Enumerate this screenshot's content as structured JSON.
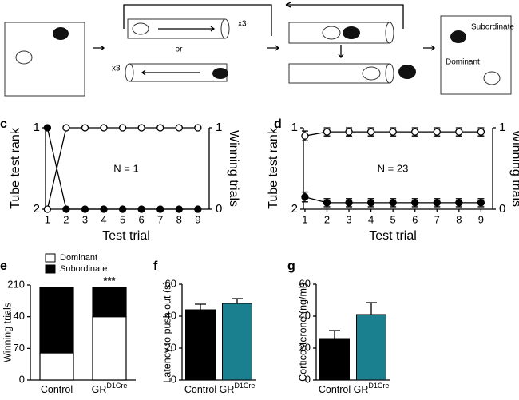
{
  "diagram": {
    "repeat_top": "x3",
    "or": "or",
    "repeat_bottom": "x3",
    "subordinate": "Subordinate",
    "dominant": "Dominant"
  },
  "chart_data": [
    {
      "type": "line",
      "panel": "c",
      "annotation": "N = 1",
      "xlabel": "Test trial",
      "ylabel": "Tube test rank",
      "y2label": "Winning trials",
      "x": [
        1,
        2,
        3,
        4,
        5,
        6,
        7,
        8,
        9
      ],
      "xlim": [
        0.9,
        9.6
      ],
      "xticks": [
        1,
        2,
        3,
        4,
        5,
        6,
        7,
        8,
        9
      ],
      "ylim": [
        2,
        1
      ],
      "yticks": [
        1,
        2
      ],
      "y2lim": [
        0,
        1
      ],
      "y2ticks": [
        0,
        1
      ],
      "series": [
        {
          "color": "#000000",
          "marker": "filled",
          "values": [
            1,
            2,
            2,
            2,
            2,
            2,
            2,
            2,
            2
          ]
        },
        {
          "color": "#000000",
          "marker": "open",
          "values": [
            2,
            1,
            1,
            1,
            1,
            1,
            1,
            1,
            1
          ]
        }
      ]
    },
    {
      "type": "line",
      "panel": "d",
      "annotation": "N = 23",
      "xlabel": "Test trial",
      "ylabel": "Tube test rank",
      "y2label": "Winning trials",
      "x": [
        1,
        2,
        3,
        4,
        5,
        6,
        7,
        8,
        9
      ],
      "xlim": [
        0.93,
        9.53
      ],
      "xticks": [
        1,
        2,
        3,
        4,
        5,
        6,
        7,
        8,
        9
      ],
      "ylim": [
        2,
        1
      ],
      "yticks": [
        1,
        2
      ],
      "y2lim": [
        0,
        1
      ],
      "y2ticks": [
        0,
        1
      ],
      "series": [
        {
          "color": "#000000",
          "marker": "filled",
          "values": [
            1.85,
            1.92,
            1.92,
            1.92,
            1.92,
            1.92,
            1.92,
            1.92,
            1.92
          ],
          "errors": [
            0.06,
            0.05,
            0.05,
            0.05,
            0.05,
            0.05,
            0.05,
            0.05,
            0.05
          ]
        },
        {
          "color": "#000000",
          "marker": "open",
          "values": [
            1.1,
            1.05,
            1.05,
            1.05,
            1.05,
            1.05,
            1.05,
            1.05,
            1.05
          ],
          "errors": [
            0.06,
            0.05,
            0.05,
            0.05,
            0.05,
            0.05,
            0.05,
            0.05,
            0.05
          ]
        }
      ]
    },
    {
      "type": "stacked_bar",
      "panel": "e",
      "annotation": "***",
      "ylabel": "Winning trials",
      "categories": [
        "Control",
        "GR"
      ],
      "category_superscripts": [
        null,
        "D1Cre"
      ],
      "ylim": [
        0,
        210
      ],
      "yticks": [
        0,
        70,
        140,
        210
      ],
      "series": [
        {
          "name": "Dominant",
          "color": "#ffffff",
          "values": [
            60,
            140
          ]
        },
        {
          "name": "Subordinate",
          "color": "#000000",
          "values": [
            144,
            64
          ]
        }
      ]
    },
    {
      "type": "bar",
      "panel": "f",
      "ylabel": "Latency to push out (s)",
      "categories": [
        "Control",
        "GR"
      ],
      "category_superscripts": [
        null,
        "D1Cre"
      ],
      "values": [
        44,
        48
      ],
      "errors": [
        3.5,
        3
      ],
      "colors": [
        "#000000",
        "#1a7f8e"
      ],
      "ylim": [
        0,
        60
      ],
      "yticks": [
        0,
        20,
        40,
        60
      ]
    },
    {
      "type": "bar",
      "panel": "g",
      "ylabel": "Corticosterone (ng/ml)",
      "categories": [
        "Control",
        "GR"
      ],
      "category_superscripts": [
        null,
        "D1Cre"
      ],
      "values": [
        26,
        41
      ],
      "errors": [
        5,
        7.5
      ],
      "colors": [
        "#000000",
        "#1a7f8e"
      ],
      "ylim": [
        0,
        60
      ],
      "yticks": [
        0,
        20,
        40,
        60
      ]
    }
  ]
}
